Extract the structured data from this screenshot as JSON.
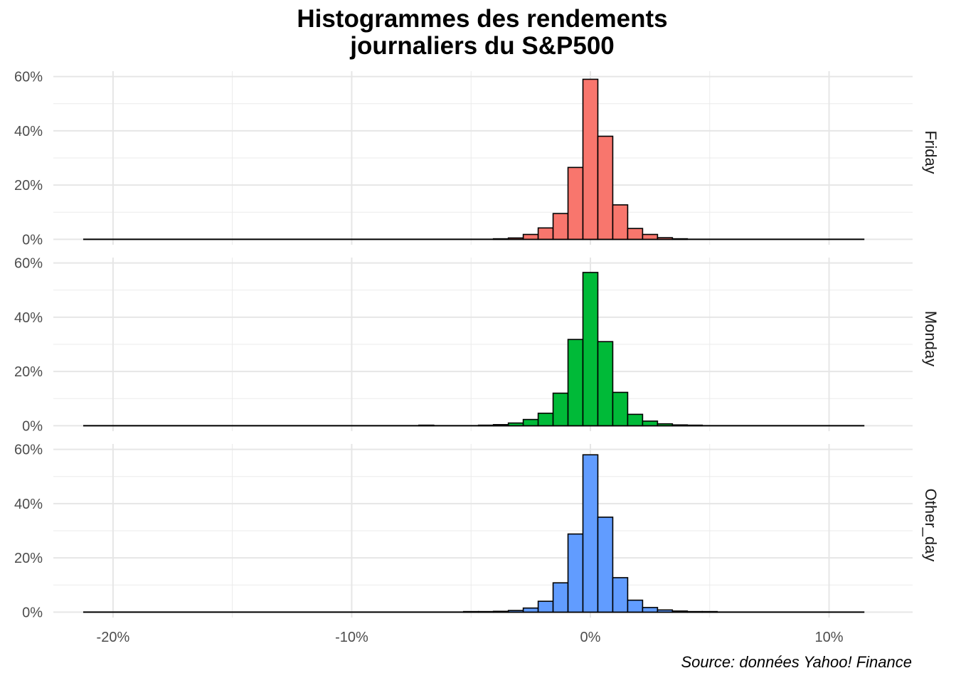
{
  "chart_data": {
    "type": "bar",
    "title_lines": [
      "Histogrammes des rendements",
      "journaliers du S&P500"
    ],
    "caption": "Source: données Yahoo! Finance",
    "x_range": [
      -0.225,
      0.135
    ],
    "x_ticks": [
      -0.2,
      -0.1,
      0.0,
      0.1
    ],
    "x_tick_labels": [
      "-20%",
      "-10%",
      "0%",
      "10%"
    ],
    "y_range": [
      -0.02,
      0.62
    ],
    "y_ticks": [
      0,
      0.2,
      0.4,
      0.6
    ],
    "y_tick_labels": [
      "0%",
      "20%",
      "40%",
      "60%"
    ],
    "bin_width": 0.00625,
    "baseline_range": [
      -0.2125,
      0.1148
    ],
    "grid": true,
    "panels": [
      {
        "name": "Friday",
        "color": "#F8766D",
        "bins": [
          {
            "x": -0.0375,
            "y": 0.002
          },
          {
            "x": -0.03125,
            "y": 0.005
          },
          {
            "x": -0.025,
            "y": 0.018
          },
          {
            "x": -0.01875,
            "y": 0.042
          },
          {
            "x": -0.0125,
            "y": 0.095
          },
          {
            "x": -0.00625,
            "y": 0.265
          },
          {
            "x": 0.0,
            "y": 0.59
          },
          {
            "x": 0.00625,
            "y": 0.38
          },
          {
            "x": 0.0125,
            "y": 0.127
          },
          {
            "x": 0.01875,
            "y": 0.04
          },
          {
            "x": 0.025,
            "y": 0.018
          },
          {
            "x": 0.03125,
            "y": 0.006
          },
          {
            "x": 0.0375,
            "y": 0.002
          }
        ]
      },
      {
        "name": "Monday",
        "color": "#00BA38",
        "bins": [
          {
            "x": -0.06875,
            "y": 0.002
          },
          {
            "x": -0.04375,
            "y": 0.002
          },
          {
            "x": -0.0375,
            "y": 0.004
          },
          {
            "x": -0.03125,
            "y": 0.01
          },
          {
            "x": -0.025,
            "y": 0.023
          },
          {
            "x": -0.01875,
            "y": 0.046
          },
          {
            "x": -0.0125,
            "y": 0.12
          },
          {
            "x": -0.00625,
            "y": 0.318
          },
          {
            "x": 0.0,
            "y": 0.565
          },
          {
            "x": 0.00625,
            "y": 0.31
          },
          {
            "x": 0.0125,
            "y": 0.123
          },
          {
            "x": 0.01875,
            "y": 0.042
          },
          {
            "x": 0.025,
            "y": 0.017
          },
          {
            "x": 0.03125,
            "y": 0.007
          },
          {
            "x": 0.0375,
            "y": 0.003
          },
          {
            "x": 0.04375,
            "y": 0.002
          }
        ]
      },
      {
        "name": "Other_day",
        "color": "#619CFF",
        "bins": [
          {
            "x": -0.05,
            "y": 0.002
          },
          {
            "x": -0.04375,
            "y": 0.002
          },
          {
            "x": -0.0375,
            "y": 0.003
          },
          {
            "x": -0.03125,
            "y": 0.006
          },
          {
            "x": -0.025,
            "y": 0.015
          },
          {
            "x": -0.01875,
            "y": 0.04
          },
          {
            "x": -0.0125,
            "y": 0.108
          },
          {
            "x": -0.00625,
            "y": 0.288
          },
          {
            "x": 0.0,
            "y": 0.58
          },
          {
            "x": 0.00625,
            "y": 0.35
          },
          {
            "x": 0.0125,
            "y": 0.127
          },
          {
            "x": 0.01875,
            "y": 0.044
          },
          {
            "x": 0.025,
            "y": 0.017
          },
          {
            "x": 0.03125,
            "y": 0.008
          },
          {
            "x": 0.0375,
            "y": 0.004
          },
          {
            "x": 0.04375,
            "y": 0.002
          },
          {
            "x": 0.05,
            "y": 0.002
          }
        ]
      }
    ]
  }
}
